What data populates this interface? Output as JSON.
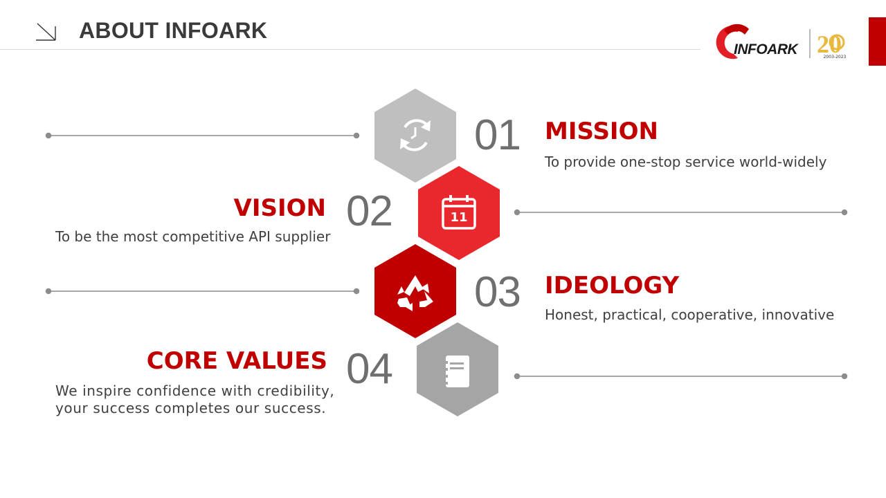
{
  "header": {
    "title": "ABOUT INFOARK",
    "logo_text": "INFOARK",
    "anniversary_years": "2003-2023",
    "anniversary_number": "20"
  },
  "colors": {
    "brand_red": "#c00000",
    "bright_red": "#e8282d",
    "light_gray": "#bfbfbf",
    "mid_gray": "#a5a5a5",
    "text_dark": "#404040",
    "gold": "#e8b93d"
  },
  "items": [
    {
      "number": "01",
      "title": "MISSION",
      "description": "To provide one-stop service world-widely",
      "icon": "refresh-clock-icon"
    },
    {
      "number": "02",
      "title": "VISION",
      "description": "To be the most competitive API supplier",
      "icon": "calendar-icon"
    },
    {
      "number": "03",
      "title": "IDEOLOGY",
      "description": "Honest, practical, cooperative, innovative",
      "icon": "recycle-icon"
    },
    {
      "number": "04",
      "title": "CORE VALUES",
      "description_line1": "We inspire confidence with credibility,",
      "description_line2": "your success completes our success.",
      "icon": "notebook-icon"
    }
  ],
  "calendar_day": "11"
}
